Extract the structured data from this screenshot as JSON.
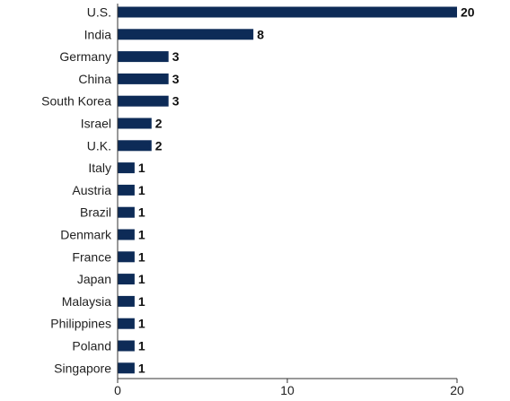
{
  "chart_data": {
    "type": "bar",
    "orientation": "horizontal",
    "title": "",
    "xlabel": "",
    "ylabel": "",
    "categories": [
      "U.S.",
      "India",
      "Germany",
      "China",
      "South Korea",
      "Israel",
      "U.K.",
      "Italy",
      "Austria",
      "Brazil",
      "Denmark",
      "France",
      "Japan",
      "Malaysia",
      "Philippines",
      "Poland",
      "Singapore"
    ],
    "values": [
      20,
      8,
      3,
      3,
      3,
      2,
      2,
      1,
      1,
      1,
      1,
      1,
      1,
      1,
      1,
      1,
      1
    ],
    "xlim": [
      0,
      20
    ],
    "xticks": [
      0,
      10,
      20
    ],
    "grid": false,
    "data_labels": true,
    "bar_color": "#0d2b57"
  }
}
